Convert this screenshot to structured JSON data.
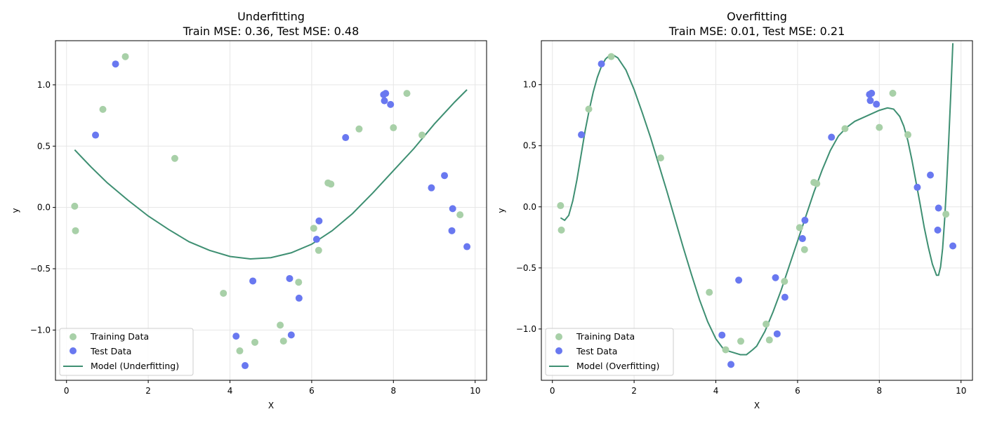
{
  "chart_data": [
    {
      "type": "scatter",
      "title": "Underfitting",
      "subtitle": "Train MSE: 0.36, Test MSE: 0.48",
      "xlabel": "X",
      "ylabel": "y",
      "xlim": [
        -0.27,
        10.28
      ],
      "ylim": [
        -1.41,
        1.36
      ],
      "xticks": [
        0,
        2,
        4,
        6,
        8,
        10
      ],
      "yticks": [
        -1.0,
        -0.5,
        0.0,
        0.5,
        1.0
      ],
      "xtick_labels": [
        "0",
        "2",
        "4",
        "6",
        "8",
        "10"
      ],
      "ytick_labels": [
        "−1.0",
        "−0.5",
        "0.0",
        "0.5",
        "1.0"
      ],
      "grid": true,
      "legend_position": "lower-left",
      "series": [
        {
          "name": "Training Data",
          "kind": "scatter",
          "color": "#a8d0a8",
          "x": [
            0.2,
            0.22,
            0.89,
            1.44,
            2.65,
            3.84,
            4.24,
            4.61,
            5.23,
            5.31,
            5.68,
            6.05,
            6.17,
            6.4,
            6.47,
            7.16,
            8.0,
            8.33,
            8.7,
            9.63
          ],
          "y": [
            0.01,
            -0.19,
            0.8,
            1.23,
            0.4,
            -0.7,
            -1.17,
            -1.1,
            -0.96,
            -1.09,
            -0.61,
            -0.17,
            -0.35,
            0.2,
            0.19,
            0.64,
            0.65,
            0.93,
            0.59,
            -0.06
          ]
        },
        {
          "name": "Test Data",
          "kind": "scatter",
          "color": "#6978f0",
          "x": [
            0.71,
            1.2,
            4.15,
            4.37,
            4.56,
            5.46,
            5.5,
            5.69,
            6.12,
            6.18,
            6.83,
            7.76,
            7.78,
            7.81,
            7.93,
            8.93,
            9.25,
            9.43,
            9.45,
            9.8
          ],
          "y": [
            0.59,
            1.17,
            -1.05,
            -1.29,
            -0.6,
            -0.58,
            -1.04,
            -0.74,
            -0.26,
            -0.11,
            0.57,
            0.92,
            0.87,
            0.93,
            0.84,
            0.16,
            0.26,
            -0.19,
            -0.01,
            -0.32
          ]
        },
        {
          "name": "Model (Underfitting)",
          "kind": "line",
          "color": "#3e8f72",
          "x": [
            0.2,
            0.6,
            1.0,
            1.5,
            2.0,
            2.5,
            3.0,
            3.5,
            4.0,
            4.5,
            5.0,
            5.5,
            6.0,
            6.5,
            7.0,
            7.5,
            8.0,
            8.5,
            9.0,
            9.5,
            9.8
          ],
          "y": [
            0.47,
            0.33,
            0.2,
            0.06,
            -0.07,
            -0.18,
            -0.28,
            -0.35,
            -0.4,
            -0.42,
            -0.41,
            -0.37,
            -0.3,
            -0.19,
            -0.05,
            0.12,
            0.3,
            0.48,
            0.68,
            0.86,
            0.96
          ]
        }
      ]
    },
    {
      "type": "scatter",
      "title": "Overfitting",
      "subtitle": "Train MSE: 0.01, Test MSE: 0.21",
      "xlabel": "X",
      "ylabel": "y",
      "xlim": [
        -0.27,
        10.28
      ],
      "ylim": [
        -1.42,
        1.36
      ],
      "xticks": [
        0,
        2,
        4,
        6,
        8,
        10
      ],
      "yticks": [
        -1.0,
        -0.5,
        0.0,
        0.5,
        1.0
      ],
      "xtick_labels": [
        "0",
        "2",
        "4",
        "6",
        "8",
        "10"
      ],
      "ytick_labels": [
        "−1.0",
        "−0.5",
        "0.0",
        "0.5",
        "1.0"
      ],
      "grid": true,
      "legend_position": "lower-left",
      "series": [
        {
          "name": "Training Data",
          "kind": "scatter",
          "color": "#a8d0a8",
          "x": [
            0.2,
            0.22,
            0.89,
            1.44,
            2.65,
            3.84,
            4.24,
            4.61,
            5.23,
            5.31,
            5.68,
            6.05,
            6.17,
            6.4,
            6.47,
            7.16,
            8.0,
            8.33,
            8.7,
            9.63
          ],
          "y": [
            0.01,
            -0.19,
            0.8,
            1.23,
            0.4,
            -0.7,
            -1.17,
            -1.1,
            -0.96,
            -1.09,
            -0.61,
            -0.17,
            -0.35,
            0.2,
            0.19,
            0.64,
            0.65,
            0.93,
            0.59,
            -0.06
          ]
        },
        {
          "name": "Test Data",
          "kind": "scatter",
          "color": "#6978f0",
          "x": [
            0.71,
            1.2,
            4.15,
            4.37,
            4.56,
            5.46,
            5.5,
            5.69,
            6.12,
            6.18,
            6.83,
            7.76,
            7.78,
            7.81,
            7.93,
            8.93,
            9.25,
            9.43,
            9.45,
            9.8
          ],
          "y": [
            0.59,
            1.17,
            -1.05,
            -1.29,
            -0.6,
            -0.58,
            -1.04,
            -0.74,
            -0.26,
            -0.11,
            0.57,
            0.92,
            0.87,
            0.93,
            0.84,
            0.16,
            0.26,
            -0.19,
            -0.01,
            -0.32
          ]
        },
        {
          "name": "Model (Overfitting)",
          "kind": "line",
          "color": "#3e8f72",
          "x": [
            0.2,
            0.3,
            0.4,
            0.5,
            0.6,
            0.7,
            0.8,
            0.9,
            1.0,
            1.1,
            1.2,
            1.3,
            1.4,
            1.5,
            1.6,
            1.8,
            2.0,
            2.2,
            2.4,
            2.6,
            2.8,
            3.0,
            3.2,
            3.4,
            3.6,
            3.8,
            4.0,
            4.2,
            4.4,
            4.6,
            4.75,
            4.9,
            5.0,
            5.2,
            5.4,
            5.6,
            5.8,
            6.0,
            6.2,
            6.4,
            6.6,
            6.8,
            7.0,
            7.2,
            7.4,
            7.6,
            7.8,
            8.0,
            8.2,
            8.35,
            8.5,
            8.6,
            8.7,
            8.8,
            8.9,
            9.0,
            9.1,
            9.2,
            9.3,
            9.4,
            9.45,
            9.5,
            9.55,
            9.6,
            9.65,
            9.7,
            9.75,
            9.8
          ],
          "y": [
            -0.09,
            -0.11,
            -0.07,
            0.05,
            0.22,
            0.42,
            0.62,
            0.79,
            0.94,
            1.06,
            1.15,
            1.21,
            1.24,
            1.24,
            1.22,
            1.12,
            0.96,
            0.77,
            0.57,
            0.35,
            0.13,
            -0.1,
            -0.33,
            -0.55,
            -0.76,
            -0.94,
            -1.08,
            -1.17,
            -1.19,
            -1.21,
            -1.21,
            -1.17,
            -1.14,
            -1.02,
            -0.86,
            -0.68,
            -0.48,
            -0.28,
            -0.08,
            0.12,
            0.3,
            0.46,
            0.58,
            0.65,
            0.7,
            0.73,
            0.76,
            0.79,
            0.81,
            0.8,
            0.74,
            0.66,
            0.54,
            0.38,
            0.2,
            0.02,
            -0.17,
            -0.33,
            -0.47,
            -0.56,
            -0.56,
            -0.49,
            -0.34,
            -0.1,
            0.2,
            0.55,
            0.93,
            1.34
          ]
        }
      ]
    }
  ]
}
